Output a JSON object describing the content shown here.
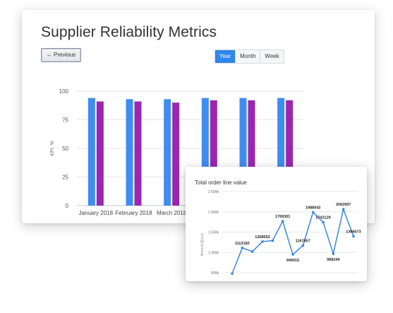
{
  "main_card": {
    "title": "Supplier Reliability Metrics",
    "prev_label": "← Previous",
    "period_options": [
      "Year",
      "Month",
      "Week"
    ],
    "period_selected": "Year"
  },
  "popup_card": {
    "title": "Total order line value"
  },
  "colors": {
    "series_blue": "#3f8df0",
    "series_purple": "#9b27b0",
    "line_blue": "#3a88dd",
    "active_button": "#2f86eb"
  },
  "chart_data": [
    {
      "type": "bar",
      "title": "Supplier Reliability Metrics",
      "ylabel": "KPI, %",
      "xlabel": "",
      "ylim": [
        0,
        100
      ],
      "yticks": [
        "0",
        "25",
        "50",
        "75",
        "100"
      ],
      "categories": [
        "January 2018",
        "February 2018",
        "March 2018",
        "",
        "",
        ""
      ],
      "series": [
        {
          "values": [
            94,
            93,
            93,
            94,
            94,
            94
          ]
        },
        {
          "values": [
            91,
            91,
            90,
            92,
            92,
            92
          ]
        }
      ],
      "grid": true
    },
    {
      "type": "line",
      "title": "Total order line value",
      "ylabel": "Amount (Euro)",
      "ylim": [
        500000,
        2500000
      ],
      "yticks": [
        "500k",
        "1 000k",
        "1 500k",
        "2 000k",
        "2 500k"
      ],
      "series": [
        {
          "values": [
            480000,
            1112182,
            1020000,
            1268552,
            1290000,
            1769301,
            949015,
            1167857,
            1988043,
            1742129,
            968244,
            2062697,
            1396073
          ],
          "labels": [
            "",
            "1112182",
            "",
            "1268552",
            "",
            "1769301",
            "949015",
            "1167857",
            "1988043",
            "1742129",
            "968244",
            "2062697",
            "1396073"
          ]
        }
      ],
      "grid": true
    }
  ]
}
